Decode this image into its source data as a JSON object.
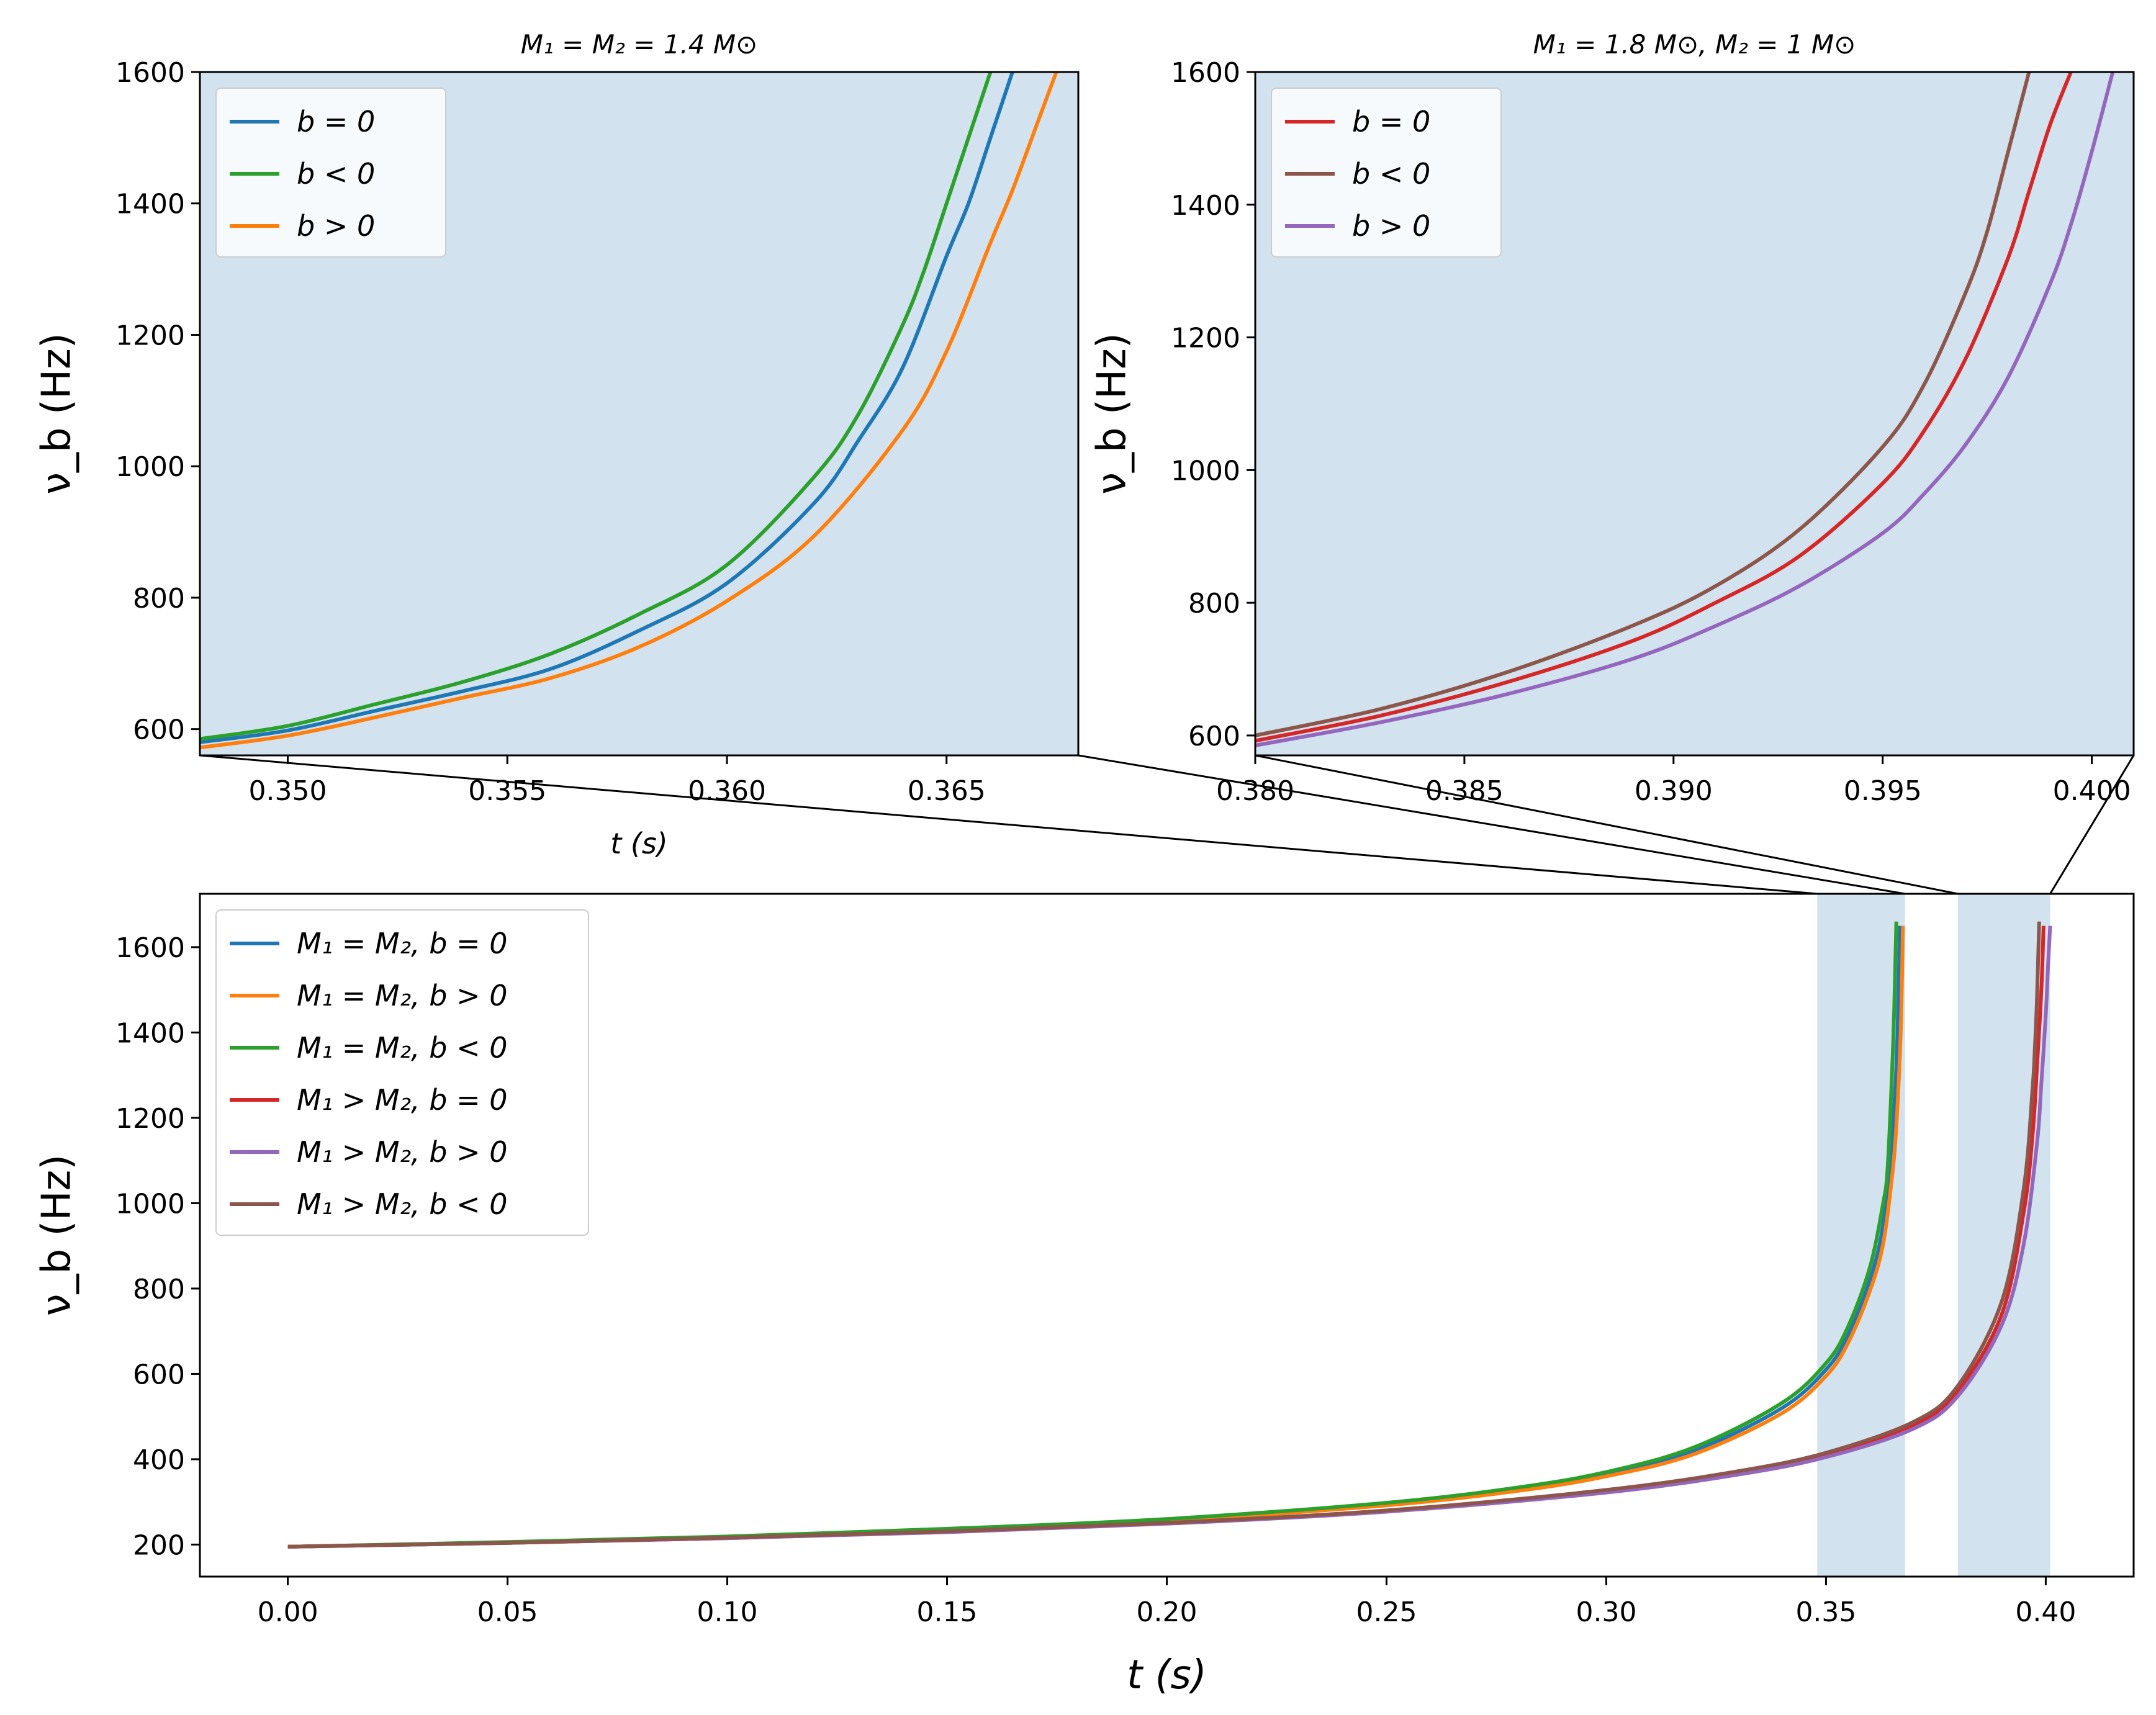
{
  "chart_data": [
    {
      "id": "inset_left",
      "type": "line",
      "title": "M₁ = M₂ = 1.4 M⊙",
      "xlabel": "t (s)",
      "ylabel": "ν_b (Hz)",
      "xlim": [
        0.348,
        0.368
      ],
      "ylim": [
        560,
        1600
      ],
      "xticks": [
        "0.350",
        "0.355",
        "0.360",
        "0.365"
      ],
      "xtick_values": [
        0.35,
        0.355,
        0.36,
        0.365
      ],
      "yticks": [
        "600",
        "800",
        "1000",
        "1200",
        "1400",
        "1600"
      ],
      "ytick_values": [
        600,
        800,
        1000,
        1200,
        1400,
        1600
      ],
      "background": "#d2e3ef",
      "legend_position": "upper-left",
      "series": [
        {
          "name": "b = 0",
          "color": "#1f77b4",
          "x": [
            0.348,
            0.35,
            0.352,
            0.354,
            0.356,
            0.358,
            0.36,
            0.362,
            0.363,
            0.364,
            0.365,
            0.3655,
            0.366,
            0.3665
          ],
          "y": [
            580,
            598,
            628,
            658,
            692,
            750,
            822,
            945,
            1040,
            1150,
            1320,
            1400,
            1500,
            1600
          ]
        },
        {
          "name": "b < 0",
          "color": "#2ca02c",
          "x": [
            0.348,
            0.35,
            0.352,
            0.354,
            0.356,
            0.358,
            0.36,
            0.362,
            0.363,
            0.364,
            0.3645,
            0.365,
            0.3655,
            0.366
          ],
          "y": [
            585,
            605,
            638,
            672,
            715,
            775,
            850,
            985,
            1080,
            1215,
            1300,
            1400,
            1500,
            1600
          ]
        },
        {
          "name": "b > 0",
          "color": "#ff7f0e",
          "x": [
            0.348,
            0.35,
            0.352,
            0.354,
            0.356,
            0.358,
            0.36,
            0.362,
            0.364,
            0.365,
            0.366,
            0.3665,
            0.367,
            0.3675
          ],
          "y": [
            572,
            590,
            618,
            648,
            678,
            725,
            795,
            895,
            1055,
            1175,
            1340,
            1420,
            1510,
            1600
          ]
        }
      ]
    },
    {
      "id": "inset_right",
      "type": "line",
      "title": "M₁ = 1.8 M⊙,  M₂ = 1 M⊙",
      "xlabel": "",
      "ylabel": "ν_b (Hz)",
      "xlim": [
        0.38,
        0.401
      ],
      "ylim": [
        570,
        1600
      ],
      "xticks": [
        "0.380",
        "0.385",
        "0.390",
        "0.395",
        "0.400"
      ],
      "xtick_values": [
        0.38,
        0.385,
        0.39,
        0.395,
        0.4
      ],
      "yticks": [
        "600",
        "800",
        "1000",
        "1200",
        "1400",
        "1600"
      ],
      "ytick_values": [
        600,
        800,
        1000,
        1200,
        1400,
        1600
      ],
      "background": "#d2e3ef",
      "legend_position": "upper-left",
      "series": [
        {
          "name": "b = 0",
          "color": "#d62728",
          "x": [
            0.38,
            0.383,
            0.386,
            0.389,
            0.391,
            0.393,
            0.395,
            0.396,
            0.397,
            0.398,
            0.3985,
            0.399,
            0.3995
          ],
          "y": [
            592,
            630,
            680,
            742,
            800,
            870,
            980,
            1060,
            1170,
            1320,
            1420,
            1520,
            1600
          ]
        },
        {
          "name": "b < 0",
          "color": "#8c564b",
          "x": [
            0.38,
            0.383,
            0.386,
            0.389,
            0.391,
            0.393,
            0.395,
            0.396,
            0.397,
            0.3975,
            0.398,
            0.3985
          ],
          "y": [
            600,
            640,
            695,
            765,
            825,
            910,
            1035,
            1130,
            1270,
            1360,
            1480,
            1600
          ]
        },
        {
          "name": "b > 0",
          "color": "#9467bd",
          "x": [
            0.38,
            0.383,
            0.386,
            0.389,
            0.391,
            0.393,
            0.395,
            0.396,
            0.397,
            0.398,
            0.399,
            0.3995,
            0.4,
            0.4005
          ],
          "y": [
            585,
            620,
            662,
            715,
            765,
            825,
            905,
            965,
            1040,
            1140,
            1280,
            1370,
            1480,
            1600
          ]
        }
      ]
    },
    {
      "id": "main",
      "type": "line",
      "title": "",
      "xlabel": "t (s)",
      "ylabel": "ν_b (Hz)",
      "xlim": [
        -0.02,
        0.42
      ],
      "ylim": [
        125,
        1725
      ],
      "xticks": [
        "0.00",
        "0.05",
        "0.10",
        "0.15",
        "0.20",
        "0.25",
        "0.30",
        "0.35",
        "0.40"
      ],
      "xtick_values": [
        0.0,
        0.05,
        0.1,
        0.15,
        0.2,
        0.25,
        0.3,
        0.35,
        0.4
      ],
      "yticks": [
        "200",
        "400",
        "600",
        "800",
        "1000",
        "1200",
        "1400",
        "1600"
      ],
      "ytick_values": [
        200,
        400,
        600,
        800,
        1000,
        1200,
        1400,
        1600
      ],
      "highlight_spans": [
        {
          "x0": 0.348,
          "x1": 0.368,
          "color": "#d2e3ef"
        },
        {
          "x0": 0.38,
          "x1": 0.401,
          "color": "#d2e3ef"
        }
      ],
      "legend_position": "upper-left",
      "series": [
        {
          "name": "M₁ = M₂, b = 0",
          "color": "#1f77b4",
          "x": [
            0.0,
            0.05,
            0.1,
            0.15,
            0.2,
            0.25,
            0.28,
            0.3,
            0.32,
            0.34,
            0.35,
            0.355,
            0.36,
            0.363,
            0.365,
            0.366,
            0.3665,
            0.3668
          ],
          "y": [
            195,
            205,
            218,
            235,
            258,
            295,
            330,
            365,
            420,
            520,
            610,
            690,
            820,
            950,
            1150,
            1320,
            1500,
            1650
          ]
        },
        {
          "name": "M₁ = M₂, b > 0",
          "color": "#ff7f0e",
          "x": [
            0.0,
            0.05,
            0.1,
            0.15,
            0.2,
            0.25,
            0.28,
            0.3,
            0.32,
            0.34,
            0.35,
            0.355,
            0.36,
            0.363,
            0.365,
            0.366,
            0.367,
            0.3675
          ],
          "y": [
            195,
            205,
            218,
            234,
            256,
            292,
            326,
            360,
            412,
            508,
            595,
            672,
            795,
            905,
            1060,
            1180,
            1400,
            1650
          ]
        },
        {
          "name": "M₁ = M₂, b < 0",
          "color": "#2ca02c",
          "x": [
            0.0,
            0.05,
            0.1,
            0.15,
            0.2,
            0.25,
            0.28,
            0.3,
            0.32,
            0.34,
            0.35,
            0.355,
            0.36,
            0.363,
            0.364,
            0.365,
            0.3655,
            0.366
          ],
          "y": [
            195,
            206,
            219,
            237,
            260,
            298,
            334,
            370,
            428,
            532,
            625,
            710,
            850,
            1000,
            1080,
            1300,
            1450,
            1660
          ]
        },
        {
          "name": "M₁ > M₂, b = 0",
          "color": "#d62728",
          "x": [
            0.0,
            0.05,
            0.1,
            0.15,
            0.2,
            0.25,
            0.3,
            0.33,
            0.35,
            0.37,
            0.38,
            0.39,
            0.395,
            0.397,
            0.398,
            0.399,
            0.3995
          ],
          "y": [
            195,
            204,
            215,
            230,
            250,
            278,
            325,
            368,
            410,
            480,
            560,
            740,
            980,
            1160,
            1320,
            1500,
            1650
          ]
        },
        {
          "name": "M₁ > M₂, b > 0",
          "color": "#9467bd",
          "x": [
            0.0,
            0.05,
            0.1,
            0.15,
            0.2,
            0.25,
            0.3,
            0.33,
            0.35,
            0.37,
            0.38,
            0.39,
            0.395,
            0.398,
            0.399,
            0.4,
            0.4005,
            0.401
          ],
          "y": [
            195,
            204,
            215,
            229,
            249,
            277,
            322,
            364,
            405,
            472,
            548,
            715,
            905,
            1140,
            1280,
            1440,
            1550,
            1650
          ]
        },
        {
          "name": "M₁ > M₂, b < 0",
          "color": "#8c564b",
          "x": [
            0.0,
            0.05,
            0.1,
            0.15,
            0.2,
            0.25,
            0.3,
            0.33,
            0.35,
            0.37,
            0.38,
            0.39,
            0.395,
            0.397,
            0.3975,
            0.398,
            0.3985
          ],
          "y": [
            195,
            204,
            216,
            231,
            251,
            280,
            328,
            372,
            415,
            488,
            572,
            770,
            1035,
            1270,
            1360,
            1480,
            1660
          ]
        }
      ]
    }
  ]
}
